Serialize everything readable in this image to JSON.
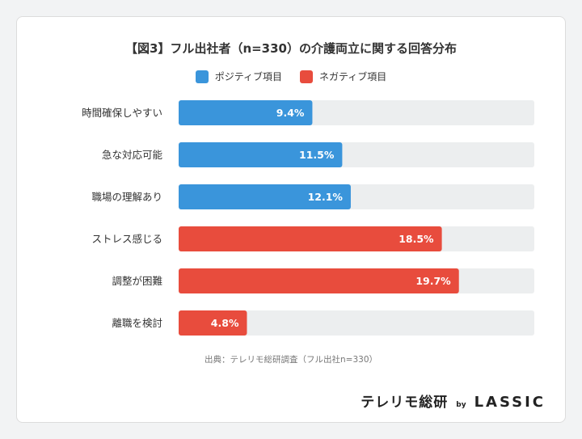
{
  "chart_data": {
    "type": "bar",
    "orientation": "horizontal",
    "title": "【図3】フル出社者（n=330）の介護両立に関する回答分布",
    "categories": [
      "時間確保しやすい",
      "急な対応可能",
      "職場の理解あり",
      "ストレス感じる",
      "調整が困難",
      "離職を検討"
    ],
    "values": [
      9.4,
      11.5,
      12.1,
      18.5,
      19.7,
      4.8
    ],
    "value_labels": [
      "9.4%",
      "11.5%",
      "12.1%",
      "18.5%",
      "19.7%",
      "4.8%"
    ],
    "groups": [
      "positive",
      "positive",
      "positive",
      "negative",
      "negative",
      "negative"
    ],
    "xlim": [
      0,
      25
    ],
    "legend": [
      {
        "key": "positive",
        "label": "ポジティブ項目",
        "color": "#3a95db"
      },
      {
        "key": "negative",
        "label": "ネガティブ項目",
        "color": "#e84c3d"
      }
    ],
    "track_color": "#eceeef",
    "source": "出典：テレリモ総研調査（フル出社n=330）"
  },
  "brand": {
    "name": "テレリモ総研",
    "by": "by",
    "partner": "LASSIC"
  }
}
